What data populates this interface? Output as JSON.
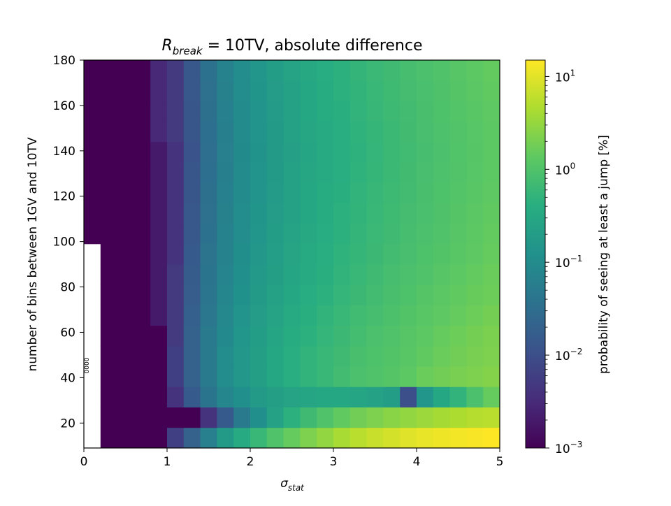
{
  "chart_data": {
    "type": "heatmap",
    "title": {
      "main": "R",
      "sub": "break",
      "rest": " = 10TV, absolute difference"
    },
    "xlabel": {
      "main": "σ",
      "sub": "stat"
    },
    "ylabel": "number of bins between 1GV and 10TV",
    "colorbar_label": "probability of seeing at least a jump [%]",
    "colormap": "viridis",
    "xlim": [
      0,
      5
    ],
    "ylim": [
      9,
      180
    ],
    "x_ticks": [
      0,
      1,
      2,
      3,
      4,
      5
    ],
    "y_ticks": [
      20,
      40,
      60,
      80,
      100,
      120,
      140,
      160,
      180
    ],
    "colorbar_scale": "log",
    "colorbar_range": [
      0.001,
      15
    ],
    "colorbar_ticks": [
      {
        "value": 0.001,
        "base": "10",
        "exp": "−3"
      },
      {
        "value": 0.01,
        "base": "10",
        "exp": "−2"
      },
      {
        "value": 0.1,
        "base": "10",
        "exp": "−1"
      },
      {
        "value": 1,
        "base": "10",
        "exp": "0"
      },
      {
        "value": 10,
        "base": "10",
        "exp": "1"
      }
    ],
    "empty_region_note": "0000",
    "x_edges": [
      0,
      0.2,
      0.4,
      0.6,
      0.8,
      1.0,
      1.2,
      1.4,
      1.6,
      1.8,
      2.0,
      2.2,
      2.4,
      2.6,
      2.8,
      3.0,
      3.2,
      3.4,
      3.6,
      3.8,
      4.0,
      4.2,
      4.4,
      4.6,
      4.8,
      5.0
    ],
    "rows": [
      {
        "y0": 9,
        "y1": 18,
        "values": [
          null,
          0.001,
          0.001,
          0.001,
          0.001,
          0.006,
          0.02,
          0.06,
          0.18,
          0.35,
          0.6,
          1.0,
          1.5,
          2.2,
          3.0,
          4.2,
          5.5,
          6.8,
          8.0,
          9.5,
          11.0,
          12.0,
          13.0,
          14.0,
          15.0
        ]
      },
      {
        "y0": 18,
        "y1": 27,
        "values": [
          null,
          0.001,
          0.001,
          0.001,
          0.001,
          0.001,
          0.001,
          0.004,
          0.015,
          0.05,
          0.12,
          0.25,
          0.45,
          0.7,
          1.0,
          1.4,
          1.8,
          2.2,
          2.6,
          3.0,
          3.5,
          4.0,
          4.5,
          5.0,
          5.5
        ]
      },
      {
        "y0": 27,
        "y1": 36,
        "values": [
          null,
          0.001,
          0.001,
          0.001,
          0.001,
          0.004,
          0.015,
          0.04,
          0.08,
          0.12,
          0.18,
          0.22,
          0.26,
          0.28,
          0.3,
          0.3,
          0.28,
          0.25,
          0.2,
          0.01,
          0.15,
          0.3,
          0.5,
          0.9,
          1.5
        ]
      },
      {
        "y0": 36,
        "y1": 45,
        "values": [
          null,
          0.001,
          0.001,
          0.001,
          0.001,
          0.006,
          0.02,
          0.05,
          0.1,
          0.16,
          0.22,
          0.3,
          0.4,
          0.5,
          0.6,
          0.75,
          0.9,
          1.0,
          1.1,
          1.3,
          1.6,
          1.8,
          2.0,
          2.2,
          2.4
        ]
      },
      {
        "y0": 45,
        "y1": 54,
        "values": [
          null,
          0.001,
          0.001,
          0.001,
          0.001,
          0.006,
          0.02,
          0.05,
          0.1,
          0.16,
          0.22,
          0.3,
          0.4,
          0.5,
          0.6,
          0.7,
          0.85,
          0.95,
          1.05,
          1.2,
          1.4,
          1.6,
          1.8,
          2.0,
          2.2
        ]
      },
      {
        "y0": 54,
        "y1": 63,
        "values": [
          null,
          0.001,
          0.001,
          0.001,
          0.001,
          0.005,
          0.02,
          0.05,
          0.09,
          0.15,
          0.2,
          0.28,
          0.36,
          0.45,
          0.55,
          0.65,
          0.78,
          0.9,
          1.0,
          1.15,
          1.3,
          1.5,
          1.7,
          1.9,
          2.1
        ]
      },
      {
        "y0": 63,
        "y1": 72,
        "values": [
          null,
          0.001,
          0.001,
          0.001,
          0.002,
          0.005,
          0.018,
          0.045,
          0.085,
          0.14,
          0.19,
          0.26,
          0.34,
          0.42,
          0.5,
          0.6,
          0.72,
          0.82,
          0.92,
          1.05,
          1.2,
          1.35,
          1.5,
          1.7,
          1.9
        ]
      },
      {
        "y0": 72,
        "y1": 81,
        "values": [
          null,
          0.001,
          0.001,
          0.001,
          0.002,
          0.005,
          0.017,
          0.042,
          0.08,
          0.13,
          0.18,
          0.24,
          0.3,
          0.38,
          0.45,
          0.55,
          0.65,
          0.75,
          0.85,
          0.95,
          1.1,
          1.25,
          1.4,
          1.55,
          1.7
        ]
      },
      {
        "y0": 81,
        "y1": 90,
        "values": [
          null,
          0.001,
          0.001,
          0.001,
          0.002,
          0.005,
          0.016,
          0.04,
          0.075,
          0.12,
          0.17,
          0.22,
          0.28,
          0.35,
          0.42,
          0.5,
          0.6,
          0.7,
          0.8,
          0.9,
          1.0,
          1.15,
          1.3,
          1.45,
          1.6
        ]
      },
      {
        "y0": 90,
        "y1": 99,
        "values": [
          null,
          0.001,
          0.001,
          0.001,
          0.002,
          0.004,
          0.015,
          0.038,
          0.07,
          0.11,
          0.16,
          0.21,
          0.27,
          0.33,
          0.4,
          0.48,
          0.56,
          0.65,
          0.74,
          0.84,
          0.95,
          1.05,
          1.2,
          1.35,
          1.5
        ]
      },
      {
        "y0": 99,
        "y1": 108,
        "values": [
          0.001,
          0.001,
          0.001,
          0.001,
          0.002,
          0.004,
          0.014,
          0.036,
          0.068,
          0.105,
          0.15,
          0.2,
          0.26,
          0.32,
          0.38,
          0.45,
          0.53,
          0.62,
          0.7,
          0.8,
          0.9,
          1.0,
          1.15,
          1.3,
          1.45
        ]
      },
      {
        "y0": 108,
        "y1": 117,
        "values": [
          0.001,
          0.001,
          0.001,
          0.001,
          0.002,
          0.004,
          0.014,
          0.035,
          0.065,
          0.1,
          0.145,
          0.19,
          0.25,
          0.31,
          0.37,
          0.44,
          0.51,
          0.6,
          0.68,
          0.77,
          0.87,
          0.97,
          1.1,
          1.25,
          1.4
        ]
      },
      {
        "y0": 117,
        "y1": 126,
        "values": [
          0.001,
          0.001,
          0.001,
          0.001,
          0.002,
          0.004,
          0.013,
          0.034,
          0.063,
          0.098,
          0.14,
          0.185,
          0.24,
          0.3,
          0.36,
          0.42,
          0.5,
          0.58,
          0.66,
          0.75,
          0.85,
          0.95,
          1.07,
          1.2,
          1.35
        ]
      },
      {
        "y0": 126,
        "y1": 135,
        "values": [
          0.001,
          0.001,
          0.001,
          0.001,
          0.002,
          0.004,
          0.013,
          0.033,
          0.062,
          0.096,
          0.138,
          0.18,
          0.235,
          0.29,
          0.35,
          0.41,
          0.48,
          0.56,
          0.64,
          0.73,
          0.83,
          0.93,
          1.04,
          1.17,
          1.3
        ]
      },
      {
        "y0": 135,
        "y1": 144,
        "values": [
          0.001,
          0.001,
          0.001,
          0.001,
          0.002,
          0.004,
          0.012,
          0.032,
          0.06,
          0.094,
          0.135,
          0.178,
          0.23,
          0.285,
          0.34,
          0.4,
          0.47,
          0.55,
          0.63,
          0.72,
          0.81,
          0.91,
          1.02,
          1.14,
          1.27
        ]
      },
      {
        "y0": 144,
        "y1": 153,
        "values": [
          0.001,
          0.001,
          0.001,
          0.001,
          0.003,
          0.005,
          0.013,
          0.033,
          0.062,
          0.096,
          0.138,
          0.18,
          0.235,
          0.29,
          0.35,
          0.41,
          0.48,
          0.56,
          0.64,
          0.73,
          0.83,
          0.93,
          1.04,
          1.17,
          1.3
        ]
      },
      {
        "y0": 153,
        "y1": 162,
        "values": [
          0.001,
          0.001,
          0.001,
          0.001,
          0.003,
          0.005,
          0.013,
          0.034,
          0.064,
          0.098,
          0.14,
          0.185,
          0.24,
          0.3,
          0.36,
          0.42,
          0.5,
          0.58,
          0.66,
          0.75,
          0.85,
          0.95,
          1.07,
          1.2,
          1.35
        ]
      },
      {
        "y0": 162,
        "y1": 171,
        "values": [
          0.001,
          0.001,
          0.001,
          0.001,
          0.003,
          0.005,
          0.014,
          0.035,
          0.066,
          0.1,
          0.145,
          0.19,
          0.25,
          0.31,
          0.37,
          0.44,
          0.51,
          0.6,
          0.68,
          0.77,
          0.87,
          0.97,
          1.1,
          1.25,
          1.4
        ]
      },
      {
        "y0": 171,
        "y1": 180,
        "values": [
          0.001,
          0.001,
          0.001,
          0.001,
          0.003,
          0.005,
          0.014,
          0.036,
          0.068,
          0.105,
          0.15,
          0.2,
          0.26,
          0.32,
          0.38,
          0.45,
          0.53,
          0.62,
          0.7,
          0.8,
          0.9,
          1.0,
          1.15,
          1.3,
          1.45
        ]
      }
    ]
  }
}
